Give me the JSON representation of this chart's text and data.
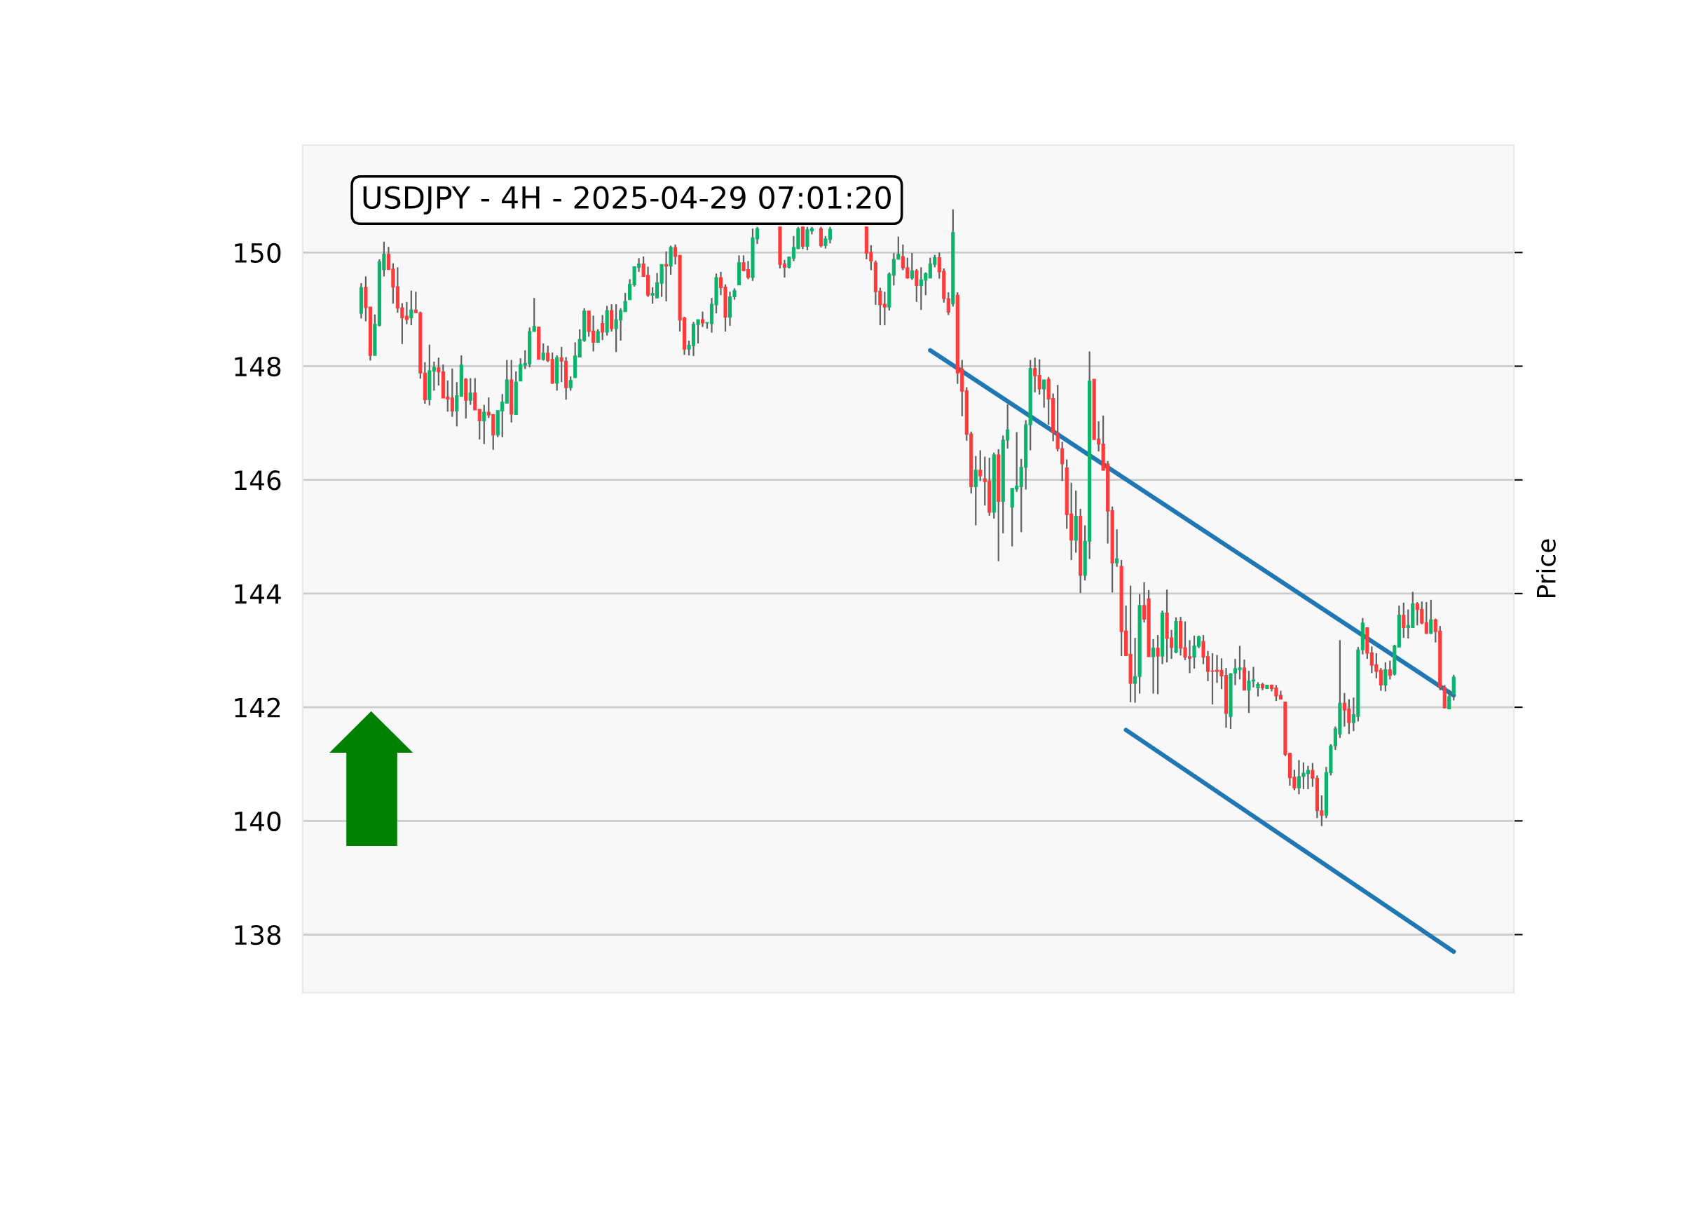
{
  "chart_data": {
    "type": "candlestick",
    "title": "USDJPY - 4H - 2025-04-29 07:01:20",
    "ylabel": "Price",
    "categories": [
      null,
      null,
      null,
      null,
      null,
      null,
      null,
      null,
      null,
      null,
      null,
      null,
      null,
      null,
      null,
      null,
      null,
      null,
      null,
      null,
      null,
      null,
      null,
      null,
      null,
      null,
      null,
      null,
      null,
      null,
      null,
      null,
      null,
      null,
      null,
      null,
      null,
      null,
      null,
      null,
      null,
      null,
      null,
      null,
      null,
      null,
      null,
      null,
      null,
      null,
      null,
      null,
      null,
      null,
      null,
      null,
      null,
      null,
      null,
      null,
      null,
      null,
      null,
      null,
      null,
      null,
      null,
      null,
      null,
      null,
      null,
      null,
      null,
      null,
      null,
      null,
      null,
      null,
      null,
      null,
      null,
      null,
      null,
      null,
      null,
      null,
      null,
      null,
      null,
      null,
      null,
      null,
      null,
      null,
      null,
      null,
      null,
      null,
      null,
      null,
      null,
      null,
      null,
      null,
      null,
      null,
      null,
      null,
      null,
      null,
      null,
      null,
      null,
      null,
      null,
      null,
      null,
      null,
      null,
      null,
      null,
      null,
      null,
      null,
      null,
      null,
      null,
      null,
      null,
      null,
      null,
      null,
      null,
      null,
      null,
      null,
      null,
      null,
      null,
      null,
      null,
      null,
      null,
      null,
      null,
      null,
      null,
      null,
      null,
      null,
      null,
      null,
      null,
      null,
      null,
      null,
      null,
      null,
      null,
      null,
      null,
      null,
      null,
      null,
      null,
      null,
      null,
      null,
      null,
      null,
      null,
      null,
      null,
      null,
      null,
      null,
      null,
      null,
      null,
      null,
      null,
      null,
      null,
      null,
      null,
      null,
      null,
      null,
      null,
      null,
      null,
      null,
      null,
      null,
      null,
      null,
      null,
      null,
      null,
      null,
      null,
      null,
      null,
      null,
      null,
      null,
      null,
      null,
      null,
      null,
      null,
      null,
      null,
      null,
      null,
      null,
      null,
      null,
      null,
      null,
      null,
      null,
      null,
      null,
      null,
      null,
      null,
      null,
      null,
      null,
      null,
      null,
      null,
      null,
      null,
      null,
      null,
      null,
      null,
      null,
      null
    ],
    "ohlc": [
      [
        148.93,
        149.46,
        148.84,
        149.38
      ],
      [
        149.39,
        149.58,
        148.79,
        149.03
      ],
      [
        149.04,
        149.04,
        148.1,
        148.19
      ],
      [
        148.19,
        148.91,
        148.19,
        148.74
      ],
      [
        148.72,
        149.88,
        148.7,
        149.84
      ],
      [
        149.7,
        150.19,
        149.58,
        149.97
      ],
      [
        149.97,
        150.1,
        149.7,
        149.7
      ],
      [
        149.71,
        149.81,
        149.1,
        149.39
      ],
      [
        149.4,
        149.74,
        148.94,
        149.02
      ],
      [
        149.03,
        149.11,
        148.39,
        148.85
      ],
      [
        148.88,
        149.13,
        148.74,
        148.82
      ],
      [
        148.85,
        149.33,
        148.72,
        148.99
      ],
      [
        148.99,
        149.31,
        148.94,
        148.94
      ],
      [
        148.94,
        148.96,
        147.78,
        147.88
      ],
      [
        147.88,
        148.07,
        147.34,
        147.41
      ],
      [
        147.41,
        148.38,
        147.31,
        147.92
      ],
      [
        147.91,
        148.08,
        147.57,
        147.98
      ],
      [
        147.97,
        148.15,
        147.66,
        147.9
      ],
      [
        147.9,
        148.03,
        147.44,
        147.44
      ],
      [
        147.46,
        147.75,
        147.2,
        147.42
      ],
      [
        147.44,
        147.96,
        147.11,
        147.21
      ],
      [
        147.21,
        147.72,
        146.94,
        147.48
      ],
      [
        147.47,
        148.19,
        147.47,
        148.02
      ],
      [
        147.77,
        147.79,
        147.08,
        147.4
      ],
      [
        147.4,
        147.79,
        147.32,
        147.53
      ],
      [
        147.53,
        147.79,
        147.23,
        147.23
      ],
      [
        147.24,
        147.24,
        146.71,
        147.04
      ],
      [
        147.04,
        147.32,
        146.63,
        147.19
      ],
      [
        147.19,
        147.45,
        147.09,
        147.14
      ],
      [
        147.15,
        147.15,
        146.53,
        146.79
      ],
      [
        146.79,
        147.22,
        146.75,
        147.22
      ],
      [
        147.21,
        147.51,
        146.75,
        147.37
      ],
      [
        147.35,
        148.11,
        147.35,
        147.76
      ],
      [
        147.76,
        148.11,
        147.01,
        147.16
      ],
      [
        147.15,
        147.91,
        147.15,
        147.72
      ],
      [
        147.74,
        148.14,
        147.74,
        148.03
      ],
      [
        148.02,
        148.28,
        147.95,
        148.05
      ],
      [
        148.04,
        148.68,
        147.98,
        148.61
      ],
      [
        148.61,
        149.2,
        148.61,
        148.7
      ],
      [
        148.69,
        148.69,
        148.12,
        148.12
      ],
      [
        148.12,
        148.4,
        148.1,
        148.23
      ],
      [
        148.23,
        148.36,
        148.07,
        148.1
      ],
      [
        148.12,
        148.24,
        147.69,
        147.7
      ],
      [
        147.7,
        148.19,
        147.57,
        148.15
      ],
      [
        148.15,
        148.34,
        147.72,
        148.09
      ],
      [
        148.09,
        148.16,
        147.41,
        147.62
      ],
      [
        147.62,
        147.82,
        147.57,
        147.75
      ],
      [
        147.8,
        148.42,
        147.79,
        148.18
      ],
      [
        148.16,
        148.65,
        148.16,
        148.47
      ],
      [
        148.45,
        149.02,
        148.43,
        148.97
      ],
      [
        148.97,
        148.97,
        148.52,
        148.61
      ],
      [
        148.62,
        148.89,
        148.26,
        148.42
      ],
      [
        148.42,
        148.65,
        148.42,
        148.61
      ],
      [
        148.75,
        148.9,
        148.46,
        148.6
      ],
      [
        148.6,
        149.06,
        148.54,
        148.98
      ],
      [
        148.98,
        149.09,
        148.61,
        148.66
      ],
      [
        148.66,
        149.09,
        148.25,
        148.82
      ],
      [
        148.81,
        149.02,
        148.45,
        148.98
      ],
      [
        148.96,
        149.29,
        148.96,
        149.14
      ],
      [
        149.17,
        149.53,
        149.17,
        149.44
      ],
      [
        149.43,
        149.75,
        149.4,
        149.75
      ],
      [
        149.74,
        149.9,
        149.66,
        149.8
      ],
      [
        149.8,
        149.93,
        149.57,
        149.58
      ],
      [
        149.6,
        149.75,
        149.22,
        149.25
      ],
      [
        149.25,
        149.39,
        149.1,
        149.28
      ],
      [
        149.2,
        149.64,
        149.2,
        149.47
      ],
      [
        149.46,
        149.79,
        149.22,
        149.79
      ],
      [
        149.79,
        150.02,
        149.14,
        149.76
      ],
      [
        149.76,
        150.12,
        149.61,
        150.09
      ],
      [
        150.09,
        150.14,
        149.79,
        149.93
      ],
      [
        149.95,
        149.95,
        148.61,
        148.81
      ],
      [
        148.85,
        148.87,
        148.2,
        148.3
      ],
      [
        148.3,
        148.45,
        148.19,
        148.37
      ],
      [
        148.36,
        148.78,
        148.18,
        148.74
      ],
      [
        148.73,
        148.82,
        148.4,
        148.82
      ],
      [
        148.82,
        148.96,
        148.69,
        148.76
      ],
      [
        148.76,
        148.77,
        148.66,
        148.77
      ],
      [
        148.75,
        149.2,
        148.59,
        149.09
      ],
      [
        149.08,
        149.63,
        148.93,
        149.56
      ],
      [
        149.56,
        149.66,
        149.25,
        149.38
      ],
      [
        149.39,
        149.44,
        148.61,
        148.86
      ],
      [
        148.86,
        149.31,
        148.71,
        149.22
      ],
      [
        149.22,
        149.37,
        149.17,
        149.33
      ],
      [
        149.43,
        149.95,
        149.43,
        149.82
      ],
      [
        149.82,
        149.95,
        149.67,
        149.68
      ],
      [
        149.7,
        149.85,
        149.53,
        149.56
      ],
      [
        149.56,
        150.42,
        149.5,
        150.26
      ],
      [
        150.24,
        150.45,
        150.15,
        150.42
      ],
      null,
      null,
      null,
      null,
      [
        150.45,
        150.45,
        149.72,
        149.79
      ],
      [
        149.8,
        149.87,
        149.56,
        149.74
      ],
      [
        149.74,
        149.93,
        149.72,
        149.92
      ],
      [
        149.9,
        150.29,
        149.85,
        150.09
      ],
      [
        150.07,
        150.45,
        150.06,
        150.42
      ],
      [
        150.45,
        150.45,
        150.06,
        150.11
      ],
      [
        150.11,
        150.45,
        150.04,
        150.4
      ],
      [
        150.38,
        150.45,
        150.32,
        150.42
      ],
      null,
      [
        150.42,
        150.45,
        150.09,
        150.12
      ],
      [
        150.12,
        150.29,
        150.07,
        150.24
      ],
      [
        150.23,
        150.45,
        150.16,
        150.41
      ],
      null,
      null,
      null,
      null,
      null,
      null,
      null,
      [
        150.45,
        150.45,
        149.88,
        149.99
      ],
      [
        150.0,
        150.13,
        149.69,
        149.85
      ],
      [
        149.82,
        149.86,
        149.08,
        149.31
      ],
      [
        149.32,
        149.38,
        148.72,
        149.08
      ],
      [
        149.09,
        149.31,
        148.72,
        149.04
      ],
      [
        149.04,
        149.65,
        148.98,
        149.62
      ],
      [
        149.6,
        149.99,
        149.42,
        149.88
      ],
      [
        149.88,
        150.28,
        149.88,
        149.97
      ],
      [
        149.93,
        150.14,
        149.69,
        149.73
      ],
      [
        149.73,
        149.91,
        149.54,
        149.55
      ],
      [
        149.55,
        149.99,
        149.52,
        149.68
      ],
      [
        149.68,
        149.71,
        149.13,
        149.42
      ],
      [
        149.42,
        149.74,
        148.99,
        149.52
      ],
      [
        149.51,
        149.65,
        149.25,
        149.63
      ],
      [
        149.55,
        149.91,
        149.55,
        149.8
      ],
      [
        149.79,
        149.96,
        149.74,
        149.91
      ],
      [
        149.91,
        150.0,
        149.54,
        149.66
      ],
      [
        149.67,
        149.72,
        149.12,
        149.19
      ],
      [
        149.19,
        149.3,
        148.9,
        148.95
      ],
      [
        149.1,
        150.76,
        149.05,
        150.35
      ],
      [
        149.25,
        149.3,
        147.69,
        147.88
      ],
      [
        147.95,
        148.11,
        147.12,
        147.56
      ],
      [
        147.57,
        147.63,
        146.69,
        146.8
      ],
      [
        146.81,
        146.85,
        145.76,
        145.88
      ],
      [
        145.88,
        146.42,
        145.2,
        146.17
      ],
      [
        146.17,
        146.52,
        145.98,
        146.07
      ],
      [
        146.02,
        146.41,
        145.55,
        145.97
      ],
      [
        145.98,
        146.39,
        145.37,
        145.43
      ],
      [
        145.43,
        146.48,
        145.32,
        146.44
      ],
      [
        146.44,
        146.54,
        144.57,
        145.62
      ],
      [
        145.62,
        146.78,
        145.06,
        146.7
      ],
      [
        146.7,
        147.33,
        146.55,
        146.88
      ],
      [
        145.52,
        145.85,
        144.83,
        145.85
      ],
      [
        145.84,
        146.84,
        145.79,
        145.89
      ],
      [
        145.88,
        146.37,
        145.08,
        146.22
      ],
      [
        146.22,
        147.05,
        145.83,
        146.97
      ],
      [
        146.97,
        148.11,
        146.52,
        147.96
      ],
      [
        147.96,
        148.15,
        147.54,
        147.83
      ],
      [
        147.84,
        148.12,
        147.5,
        147.6
      ],
      [
        147.6,
        147.76,
        147.27,
        147.76
      ],
      [
        147.77,
        147.81,
        146.97,
        147.42
      ],
      [
        147.43,
        147.52,
        146.68,
        146.83
      ],
      [
        146.83,
        147.67,
        146.5,
        146.55
      ],
      [
        146.55,
        146.67,
        145.98,
        146.28
      ],
      [
        146.21,
        146.36,
        145.14,
        145.39
      ],
      [
        145.4,
        145.95,
        144.59,
        144.94
      ],
      [
        144.94,
        145.81,
        144.72,
        145.36
      ],
      [
        145.36,
        145.49,
        144.01,
        144.32
      ],
      [
        144.32,
        145.2,
        144.23,
        144.92
      ],
      [
        144.92,
        148.26,
        144.61,
        147.74
      ],
      [
        147.77,
        147.77,
        146.71,
        146.71
      ],
      [
        146.72,
        147.03,
        146.5,
        146.63
      ],
      [
        146.63,
        147.13,
        146.17,
        146.17
      ],
      [
        146.28,
        146.33,
        144.88,
        145.45
      ],
      [
        145.46,
        145.53,
        144.02,
        144.54
      ],
      [
        144.54,
        145.13,
        144.47,
        144.61
      ],
      [
        144.48,
        144.59,
        142.9,
        143.33
      ],
      [
        143.34,
        143.79,
        142.9,
        142.91
      ],
      [
        142.93,
        144.14,
        142.09,
        142.42
      ],
      [
        142.42,
        143.22,
        142.08,
        142.54
      ],
      [
        142.54,
        143.99,
        142.24,
        143.79
      ],
      [
        143.79,
        144.2,
        143.49,
        143.55
      ],
      [
        143.91,
        144.06,
        142.89,
        142.89
      ],
      [
        142.89,
        143.2,
        142.24,
        143.04
      ],
      [
        143.04,
        143.27,
        142.23,
        142.9
      ],
      [
        142.9,
        143.7,
        142.76,
        143.66
      ],
      [
        143.66,
        144.07,
        142.79,
        143.21
      ],
      [
        143.22,
        143.36,
        142.85,
        143.05
      ],
      [
        142.97,
        143.58,
        142.95,
        143.51
      ],
      [
        143.51,
        143.59,
        142.91,
        143.04
      ],
      [
        143.05,
        143.51,
        142.83,
        142.88
      ],
      [
        142.89,
        143.18,
        142.6,
        142.86
      ],
      [
        142.88,
        143.26,
        142.68,
        143.08
      ],
      [
        143.07,
        143.26,
        143.04,
        143.24
      ],
      [
        143.16,
        143.27,
        142.76,
        142.88
      ],
      [
        142.89,
        142.99,
        142.46,
        142.63
      ],
      [
        142.64,
        142.95,
        142.05,
        142.63
      ],
      [
        142.65,
        142.92,
        142.43,
        142.63
      ],
      [
        142.65,
        142.86,
        142.32,
        142.55
      ],
      [
        142.56,
        142.69,
        141.64,
        141.89
      ],
      [
        141.84,
        142.6,
        141.62,
        142.59
      ],
      [
        142.6,
        142.85,
        142.39,
        142.68
      ],
      [
        142.66,
        143.08,
        142.49,
        142.69
      ],
      [
        142.69,
        142.84,
        142.3,
        142.3
      ],
      [
        142.3,
        142.64,
        141.9,
        142.46
      ],
      [
        142.46,
        142.71,
        142.35,
        142.48
      ],
      [
        142.34,
        142.44,
        142.19,
        142.4
      ],
      [
        142.4,
        142.43,
        142.3,
        142.34
      ],
      [
        142.33,
        142.39,
        142.32,
        142.39
      ],
      [
        142.39,
        142.4,
        142.28,
        142.33
      ],
      [
        142.34,
        142.39,
        142.11,
        142.2
      ],
      [
        142.21,
        142.29,
        142.14,
        142.14
      ],
      [
        142.09,
        142.1,
        141.14,
        141.17
      ],
      [
        141.19,
        141.2,
        140.62,
        140.76
      ],
      [
        140.77,
        140.9,
        140.54,
        140.58
      ],
      [
        140.58,
        141.07,
        140.47,
        140.78
      ],
      [
        140.78,
        141.03,
        140.56,
        140.84
      ],
      [
        140.83,
        140.97,
        140.56,
        140.89
      ],
      [
        140.89,
        141.02,
        140.6,
        140.75
      ],
      [
        140.75,
        140.8,
        140.05,
        140.18
      ],
      [
        140.18,
        140.45,
        139.91,
        140.1
      ],
      [
        140.1,
        140.95,
        140.05,
        140.85
      ],
      [
        140.85,
        141.35,
        140.8,
        141.32
      ],
      [
        141.32,
        141.66,
        141.25,
        141.62
      ],
      [
        141.53,
        143.18,
        141.46,
        142.07
      ],
      [
        142.07,
        142.25,
        141.66,
        141.95
      ],
      [
        141.97,
        142.14,
        141.53,
        141.73
      ],
      [
        141.73,
        142.17,
        141.58,
        141.87
      ],
      [
        141.84,
        143.06,
        141.75,
        143.01
      ],
      [
        143.01,
        143.57,
        142.93,
        143.48
      ],
      [
        143.4,
        143.4,
        142.85,
        142.95
      ],
      [
        142.96,
        143.07,
        142.6,
        142.74
      ],
      [
        142.75,
        142.95,
        142.51,
        142.63
      ],
      [
        142.65,
        142.69,
        142.29,
        142.39
      ],
      [
        142.39,
        142.79,
        142.28,
        142.66
      ],
      [
        142.66,
        142.82,
        142.49,
        142.56
      ],
      [
        142.58,
        143.1,
        142.56,
        143.08
      ],
      [
        143.06,
        143.79,
        143.06,
        143.62
      ],
      [
        143.62,
        143.84,
        143.22,
        143.4
      ],
      [
        143.4,
        143.72,
        143.21,
        143.44
      ],
      [
        143.4,
        144.03,
        143.4,
        143.82
      ],
      [
        143.82,
        143.85,
        143.44,
        143.72
      ],
      [
        143.72,
        143.86,
        143.46,
        143.48
      ],
      [
        143.49,
        143.85,
        143.29,
        143.3
      ],
      [
        143.3,
        143.89,
        143.29,
        143.54
      ],
      [
        143.54,
        143.56,
        143.14,
        143.33
      ],
      [
        143.34,
        143.43,
        142.3,
        142.35
      ],
      [
        142.35,
        142.39,
        141.98,
        141.99
      ],
      [
        141.97,
        142.31,
        141.97,
        142.19
      ],
      [
        142.23,
        142.57,
        142.12,
        142.53
      ]
    ],
    "colors": [
      "#0bb36b",
      "#ff3a3a",
      "#ff3a3a",
      "#0bb36b",
      "#0bb36b",
      "#0bb36b",
      "#ff3a3a",
      "#ff3a3a",
      "#ff3a3a",
      "#ff3a3a",
      "#ff3a3a",
      "#0bb36b",
      "#ff3a3a",
      "#ff3a3a",
      "#ff3a3a",
      "#0bb36b",
      "#0bb36b",
      "#ff3a3a",
      "#ff3a3a",
      "#ff3a3a",
      "#ff3a3a",
      "#0bb36b",
      "#0bb36b",
      "#ff3a3a",
      "#0bb36b",
      "#ff3a3a",
      "#ff3a3a",
      "#0bb36b",
      "#ff3a3a",
      "#ff3a3a",
      "#0bb36b",
      "#0bb36b",
      "#0bb36b",
      "#ff3a3a",
      "#0bb36b",
      "#0bb36b",
      "#0bb36b",
      "#0bb36b",
      "#0bb36b",
      "#ff3a3a",
      "#0bb36b",
      "#ff3a3a",
      "#ff3a3a",
      "#0bb36b",
      "#ff3a3a",
      "#ff3a3a",
      "#0bb36b",
      "#0bb36b",
      "#0bb36b",
      "#0bb36b",
      "#ff3a3a",
      "#ff3a3a",
      "#0bb36b",
      "#ff3a3a",
      "#0bb36b",
      "#ff3a3a",
      "#0bb36b",
      "#0bb36b",
      "#0bb36b",
      "#0bb36b",
      "#0bb36b",
      "#0bb36b",
      "#ff3a3a",
      "#ff3a3a",
      "#0bb36b",
      "#0bb36b",
      "#0bb36b",
      "#ff3a3a",
      "#0bb36b",
      "#ff3a3a",
      "#ff3a3a",
      "#ff3a3a",
      "#0bb36b",
      "#0bb36b",
      "#0bb36b",
      "#ff3a3a",
      "#0bb36b",
      "#0bb36b",
      "#0bb36b",
      "#ff3a3a",
      "#ff3a3a",
      "#0bb36b",
      "#0bb36b",
      "#0bb36b",
      "#ff3a3a",
      "#ff3a3a",
      "#0bb36b",
      "#0bb36b",
      null,
      null,
      null,
      null,
      "#ff3a3a",
      "#ff3a3a",
      "#0bb36b",
      "#0bb36b",
      "#0bb36b",
      "#ff3a3a",
      "#0bb36b",
      "#0bb36b",
      null,
      "#ff3a3a",
      "#0bb36b",
      "#0bb36b",
      null,
      null,
      null,
      null,
      null,
      null,
      null,
      "#ff3a3a",
      "#ff3a3a",
      "#ff3a3a",
      "#ff3a3a",
      "#ff3a3a",
      "#0bb36b",
      "#0bb36b",
      "#0bb36b",
      "#ff3a3a",
      "#ff3a3a",
      "#0bb36b",
      "#ff3a3a",
      "#0bb36b",
      "#0bb36b",
      "#0bb36b",
      "#0bb36b",
      "#ff3a3a",
      "#ff3a3a",
      "#ff3a3a",
      "#0bb36b",
      "#ff3a3a",
      "#ff3a3a",
      "#ff3a3a",
      "#ff3a3a",
      "#0bb36b",
      "#ff3a3a",
      "#ff3a3a",
      "#ff3a3a",
      "#0bb36b",
      "#ff3a3a",
      "#0bb36b",
      "#0bb36b",
      "#0bb36b",
      "#0bb36b",
      "#0bb36b",
      "#0bb36b",
      "#0bb36b",
      "#ff3a3a",
      "#ff3a3a",
      "#0bb36b",
      "#ff3a3a",
      "#ff3a3a",
      "#ff3a3a",
      "#ff3a3a",
      "#ff3a3a",
      "#ff3a3a",
      "#0bb36b",
      "#ff3a3a",
      "#0bb36b",
      "#0bb36b",
      "#ff3a3a",
      "#ff3a3a",
      "#ff3a3a",
      "#ff3a3a",
      "#ff3a3a",
      "#0bb36b",
      "#ff3a3a",
      "#ff3a3a",
      "#ff3a3a",
      "#0bb36b",
      "#0bb36b",
      "#ff3a3a",
      "#ff3a3a",
      "#0bb36b",
      "#ff3a3a",
      "#0bb36b",
      "#ff3a3a",
      "#ff3a3a",
      "#0bb36b",
      "#ff3a3a",
      "#ff3a3a",
      "#ff3a3a",
      "#0bb36b",
      "#0bb36b",
      "#ff3a3a",
      "#ff3a3a",
      "#ff3a3a",
      "#ff3a3a",
      "#ff3a3a",
      "#ff3a3a",
      "#0bb36b",
      "#0bb36b",
      "#0bb36b",
      "#ff3a3a",
      "#0bb36b",
      "#0bb36b",
      "#0bb36b",
      "#ff3a3a",
      "#0bb36b",
      "#ff3a3a",
      "#ff3a3a",
      "#ff3a3a",
      "#ff3a3a",
      "#ff3a3a",
      "#ff3a3a",
      "#0bb36b",
      "#0bb36b",
      "#0bb36b",
      "#ff3a3a",
      "#ff3a3a",
      "#ff3a3a",
      "#0bb36b",
      "#0bb36b",
      "#0bb36b",
      "#0bb36b",
      "#ff3a3a",
      "#ff3a3a",
      "#0bb36b",
      "#0bb36b",
      "#0bb36b",
      "#ff3a3a",
      "#ff3a3a",
      "#ff3a3a",
      "#ff3a3a",
      "#0bb36b",
      "#ff3a3a",
      "#0bb36b",
      "#0bb36b",
      "#ff3a3a",
      "#0bb36b",
      "#0bb36b",
      "#ff3a3a",
      "#ff3a3a",
      "#ff3a3a",
      "#0bb36b",
      "#ff3a3a",
      "#ff3a3a",
      "#ff3a3a",
      "#0bb36b",
      "#0bb36b"
    ],
    "series": [
      {
        "type": "line",
        "color": "#1f77b4",
        "values": [
          null,
          null,
          null,
          null,
          null,
          null,
          null,
          null,
          null,
          null,
          null,
          null,
          null,
          null,
          null,
          null,
          null,
          null,
          null,
          null,
          null,
          null,
          null,
          null,
          null,
          null,
          null,
          null,
          null,
          null,
          null,
          null,
          null,
          null,
          null,
          null,
          null,
          null,
          null,
          null,
          null,
          null,
          null,
          null,
          null,
          null,
          null,
          null,
          null,
          null,
          null,
          null,
          null,
          null,
          null,
          null,
          null,
          null,
          null,
          null,
          null,
          null,
          null,
          null,
          null,
          null,
          null,
          null,
          null,
          null,
          null,
          null,
          null,
          null,
          null,
          null,
          null,
          null,
          null,
          null,
          null,
          null,
          null,
          null,
          null,
          null,
          null,
          null,
          null,
          null,
          null,
          null,
          null,
          null,
          null,
          null,
          null,
          null,
          null,
          null,
          null,
          null,
          null,
          null,
          null,
          null,
          null,
          null,
          null,
          null,
          null,
          null,
          null,
          null,
          null,
          null,
          null,
          null,
          null,
          null,
          null,
          null,
          null,
          null,
          null,
          148.28,
          null,
          null,
          null,
          null,
          null,
          null,
          null,
          null,
          null,
          null,
          null,
          null,
          null,
          null,
          null,
          null,
          null,
          null,
          null,
          null,
          null,
          null,
          null,
          null,
          null,
          null,
          null,
          null,
          null,
          null,
          null,
          null,
          null,
          null,
          null,
          null,
          null,
          null,
          null,
          null,
          null,
          null,
          null,
          null,
          null,
          null,
          null,
          null,
          null,
          null,
          null,
          null,
          null,
          null,
          null,
          null,
          null,
          null,
          null,
          null,
          null,
          null,
          null,
          null,
          null,
          null,
          null,
          null,
          null,
          null,
          null,
          null,
          null,
          null,
          null,
          null,
          null,
          null,
          null,
          null,
          null,
          null,
          null,
          null,
          null,
          null,
          null,
          null,
          null,
          null,
          null,
          null,
          null,
          null,
          null,
          null,
          null,
          null,
          null,
          null,
          null,
          null,
          null,
          null,
          null,
          null,
          null,
          null,
          null,
          null,
          null,
          null,
          null,
          null,
          142.21
        ]
      },
      {
        "type": "line",
        "color": "#1f77b4",
        "values": [
          null,
          null,
          null,
          null,
          null,
          null,
          null,
          null,
          null,
          null,
          null,
          null,
          null,
          null,
          null,
          null,
          null,
          null,
          null,
          null,
          null,
          null,
          null,
          null,
          null,
          null,
          null,
          null,
          null,
          null,
          null,
          null,
          null,
          null,
          null,
          null,
          null,
          null,
          null,
          null,
          null,
          null,
          null,
          null,
          null,
          null,
          null,
          null,
          null,
          null,
          null,
          null,
          null,
          null,
          null,
          null,
          null,
          null,
          null,
          null,
          null,
          null,
          null,
          null,
          null,
          null,
          null,
          null,
          null,
          null,
          null,
          null,
          null,
          null,
          null,
          null,
          null,
          null,
          null,
          null,
          null,
          null,
          null,
          null,
          null,
          null,
          null,
          null,
          null,
          null,
          null,
          null,
          null,
          null,
          null,
          null,
          null,
          null,
          null,
          null,
          null,
          null,
          null,
          null,
          null,
          null,
          null,
          null,
          null,
          null,
          null,
          null,
          null,
          null,
          null,
          null,
          null,
          null,
          null,
          null,
          null,
          null,
          null,
          null,
          null,
          null,
          null,
          null,
          null,
          null,
          null,
          null,
          null,
          null,
          null,
          null,
          null,
          null,
          null,
          null,
          null,
          null,
          null,
          null,
          null,
          null,
          null,
          null,
          null,
          null,
          null,
          null,
          null,
          null,
          null,
          null,
          null,
          null,
          null,
          null,
          null,
          null,
          null,
          null,
          null,
          null,
          null,
          null,
          141.6,
          null,
          null,
          null,
          null,
          null,
          null,
          null,
          null,
          null,
          null,
          null,
          null,
          null,
          null,
          null,
          null,
          null,
          null,
          null,
          null,
          null,
          null,
          null,
          null,
          null,
          null,
          null,
          null,
          null,
          null,
          null,
          null,
          null,
          null,
          null,
          null,
          null,
          null,
          null,
          null,
          null,
          null,
          null,
          null,
          null,
          null,
          null,
          null,
          null,
          null,
          null,
          null,
          null,
          null,
          null,
          null,
          null,
          null,
          null,
          null,
          null,
          null,
          null,
          null,
          null,
          null,
          null,
          null,
          null,
          null,
          null,
          137.7
        ]
      }
    ],
    "ylim": [
      136.98,
      151.89
    ],
    "yticks": [
      138,
      140,
      142,
      144,
      146,
      148,
      150
    ],
    "grid": "y",
    "tick_labels": "y"
  }
}
